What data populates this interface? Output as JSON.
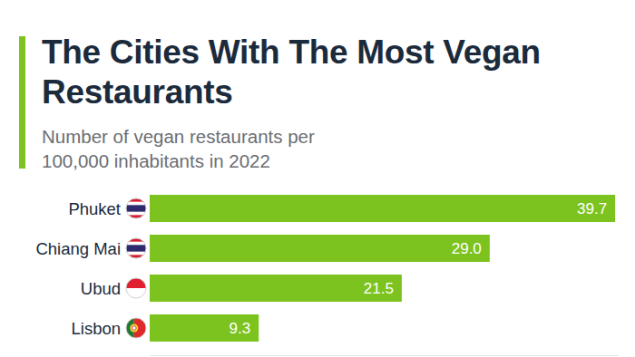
{
  "chart_data": {
    "type": "bar",
    "orientation": "horizontal",
    "title": "The Cities With The Most Vegan Restaurants",
    "subtitle": "Number of vegan restaurants per 100,000 inhabitants in 2022",
    "categories": [
      "Phuket",
      "Chiang Mai",
      "Ubud",
      "Lisbon"
    ],
    "values": [
      39.7,
      29.0,
      21.5,
      9.3
    ],
    "value_labels": [
      "39.7",
      "29.0",
      "21.5",
      "9.3"
    ],
    "color": "#7dc31f",
    "xlim": [
      0,
      40
    ],
    "xticks": [],
    "data_labels": true,
    "tick_labels": "y",
    "grid": false
  }
}
